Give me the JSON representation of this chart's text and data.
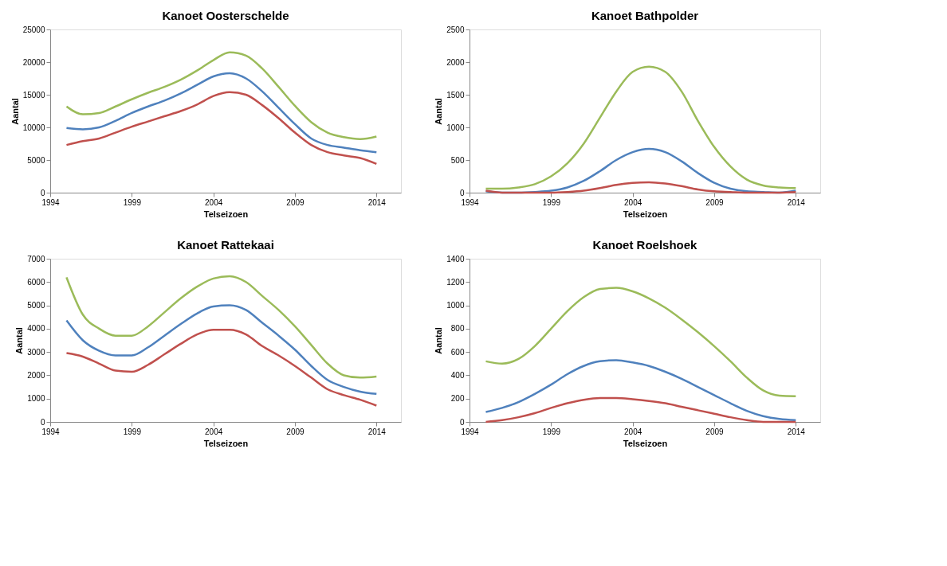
{
  "chart_data": [
    {
      "type": "line",
      "title": "Kanoet Oosterschelde",
      "xlabel": "Telseizoen",
      "ylabel": "Aantal",
      "x": [
        1995,
        1996,
        1997,
        1998,
        1999,
        2000,
        2001,
        2002,
        2003,
        2004,
        2005,
        2006,
        2007,
        2008,
        2009,
        2010,
        2011,
        2012,
        2013,
        2014
      ],
      "xlim": [
        1994,
        2015.5
      ],
      "xticks": [
        1994,
        1999,
        2004,
        2009,
        2014
      ],
      "ylim": [
        0,
        25000
      ],
      "yticks": [
        0,
        5000,
        10000,
        15000,
        20000,
        25000
      ],
      "grid": false,
      "legend": false,
      "series": [
        {
          "color": "#9bbb59",
          "values": [
            13200,
            12000,
            12200,
            13200,
            14300,
            15300,
            16200,
            17300,
            18700,
            20300,
            21500,
            21000,
            19000,
            16200,
            13300,
            10800,
            9200,
            8500,
            8200,
            8600
          ]
        },
        {
          "color": "#4f81bd",
          "values": [
            9900,
            9700,
            10000,
            11000,
            12200,
            13200,
            14100,
            15200,
            16500,
            17800,
            18300,
            17500,
            15500,
            13000,
            10500,
            8300,
            7300,
            6900,
            6500,
            6200
          ]
        },
        {
          "color": "#c0504d",
          "values": [
            7300,
            7900,
            8300,
            9200,
            10100,
            10900,
            11700,
            12500,
            13500,
            14800,
            15400,
            15000,
            13400,
            11400,
            9200,
            7300,
            6200,
            5700,
            5300,
            4400
          ]
        }
      ]
    },
    {
      "type": "line",
      "title": "Kanoet Bathpolder",
      "xlabel": "Telseizoen",
      "ylabel": "Aantal",
      "x": [
        1995,
        1996,
        1997,
        1998,
        1999,
        2000,
        2001,
        2002,
        2003,
        2004,
        2005,
        2006,
        2007,
        2008,
        2009,
        2010,
        2011,
        2012,
        2013,
        2014
      ],
      "xlim": [
        1994,
        2015.5
      ],
      "xticks": [
        1994,
        1999,
        2004,
        2009,
        2014
      ],
      "ylim": [
        0,
        2500
      ],
      "yticks": [
        0,
        500,
        1000,
        1500,
        2000,
        2500
      ],
      "grid": false,
      "legend": false,
      "series": [
        {
          "color": "#9bbb59",
          "values": [
            60,
            60,
            80,
            130,
            250,
            450,
            750,
            1150,
            1550,
            1850,
            1930,
            1850,
            1550,
            1100,
            700,
            400,
            200,
            110,
            80,
            70
          ]
        },
        {
          "color": "#4f81bd",
          "values": [
            20,
            0,
            0,
            10,
            30,
            80,
            180,
            330,
            500,
            620,
            670,
            620,
            480,
            300,
            150,
            60,
            20,
            10,
            0,
            30
          ]
        },
        {
          "color": "#c0504d",
          "values": [
            30,
            0,
            0,
            0,
            0,
            10,
            30,
            70,
            120,
            150,
            160,
            140,
            100,
            50,
            20,
            10,
            0,
            0,
            0,
            10
          ]
        }
      ]
    },
    {
      "type": "line",
      "title": "Kanoet Rattekaai",
      "xlabel": "Telseizoen",
      "ylabel": "Aantal",
      "x": [
        1995,
        1996,
        1997,
        1998,
        1999,
        2000,
        2001,
        2002,
        2003,
        2004,
        2005,
        2006,
        2007,
        2008,
        2009,
        2010,
        2011,
        2012,
        2013,
        2014
      ],
      "xlim": [
        1994,
        2015.5
      ],
      "xticks": [
        1994,
        1999,
        2004,
        2009,
        2014
      ],
      "ylim": [
        0,
        7000
      ],
      "yticks": [
        0,
        1000,
        2000,
        3000,
        4000,
        5000,
        6000,
        7000
      ],
      "grid": false,
      "legend": false,
      "series": [
        {
          "color": "#9bbb59",
          "values": [
            6200,
            4600,
            4000,
            3700,
            3700,
            4100,
            4700,
            5300,
            5800,
            6150,
            6250,
            6000,
            5400,
            4800,
            4100,
            3300,
            2500,
            2000,
            1900,
            1950
          ]
        },
        {
          "color": "#4f81bd",
          "values": [
            4350,
            3500,
            3050,
            2850,
            2850,
            3200,
            3700,
            4200,
            4650,
            4950,
            5000,
            4800,
            4250,
            3700,
            3100,
            2400,
            1800,
            1500,
            1300,
            1200
          ]
        },
        {
          "color": "#c0504d",
          "values": [
            2950,
            2800,
            2500,
            2200,
            2150,
            2450,
            2900,
            3350,
            3750,
            3950,
            3950,
            3750,
            3250,
            2850,
            2400,
            1900,
            1400,
            1150,
            950,
            700
          ]
        }
      ]
    },
    {
      "type": "line",
      "title": "Kanoet Roelshoek",
      "xlabel": "Telseizoen",
      "ylabel": "Aantal",
      "x": [
        1995,
        1996,
        1997,
        1998,
        1999,
        2000,
        2001,
        2002,
        2003,
        2004,
        2005,
        2006,
        2007,
        2008,
        2009,
        2010,
        2011,
        2012,
        2013,
        2014
      ],
      "xlim": [
        1994,
        2015.5
      ],
      "xticks": [
        1994,
        1999,
        2004,
        2009,
        2014
      ],
      "ylim": [
        0,
        1400
      ],
      "yticks": [
        0,
        200,
        400,
        600,
        800,
        1000,
        1200,
        1400
      ],
      "grid": false,
      "legend": false,
      "series": [
        {
          "color": "#9bbb59",
          "values": [
            520,
            500,
            540,
            650,
            800,
            950,
            1070,
            1140,
            1150,
            1120,
            1060,
            980,
            880,
            770,
            650,
            520,
            380,
            270,
            225,
            220
          ]
        },
        {
          "color": "#4f81bd",
          "values": [
            85,
            120,
            170,
            240,
            320,
            410,
            480,
            520,
            530,
            510,
            480,
            430,
            370,
            300,
            230,
            160,
            95,
            50,
            25,
            15
          ]
        },
        {
          "color": "#c0504d",
          "values": [
            0,
            15,
            40,
            75,
            120,
            160,
            190,
            205,
            205,
            195,
            180,
            160,
            130,
            100,
            70,
            40,
            15,
            0,
            0,
            0
          ]
        }
      ]
    }
  ]
}
